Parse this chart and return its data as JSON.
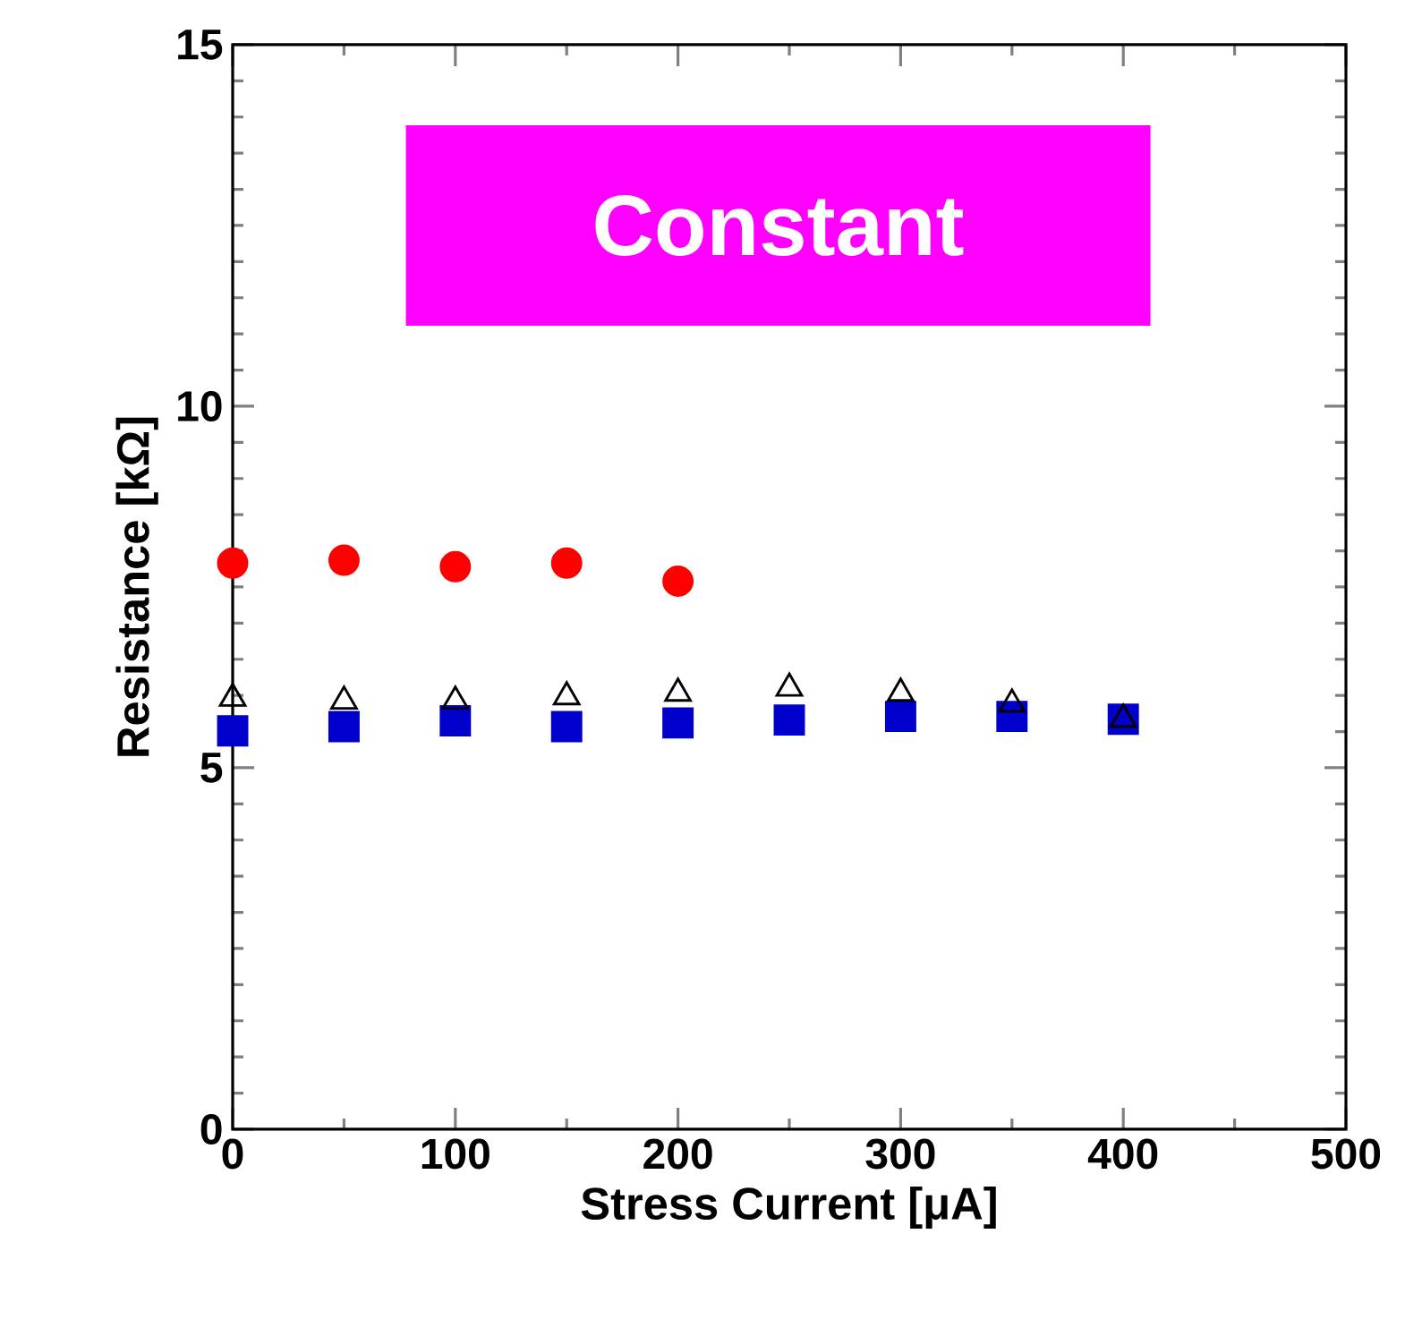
{
  "chart_data": {
    "type": "scatter",
    "xlabel": "Stress Current [μA]",
    "ylabel": "Resistance [kΩ]",
    "annotations": [
      "Constant"
    ],
    "xlim": [
      0,
      500
    ],
    "ylim": [
      0,
      15
    ],
    "xticks": [
      0,
      100,
      200,
      300,
      400,
      500
    ],
    "yticks": [
      0,
      5,
      10,
      15
    ],
    "grid": false,
    "series": [
      {
        "color": "#ff0000",
        "marker": "circle",
        "x": [
          0,
          50,
          100,
          150,
          200
        ],
        "values": [
          7.83,
          7.87,
          7.78,
          7.83,
          7.58
        ]
      },
      {
        "color": "#0000cc",
        "marker": "square",
        "x": [
          0,
          50,
          100,
          150,
          200,
          250,
          300,
          350,
          400
        ],
        "values": [
          5.51,
          5.57,
          5.65,
          5.57,
          5.62,
          5.66,
          5.71,
          5.71,
          5.67
        ]
      },
      {
        "color": "#000000",
        "marker": "triangle",
        "x": [
          0,
          50,
          100,
          150,
          200,
          250,
          300,
          350,
          400
        ],
        "values": [
          5.96,
          5.92,
          5.92,
          5.98,
          6.03,
          6.1,
          6.03,
          5.88,
          5.67
        ]
      }
    ]
  }
}
